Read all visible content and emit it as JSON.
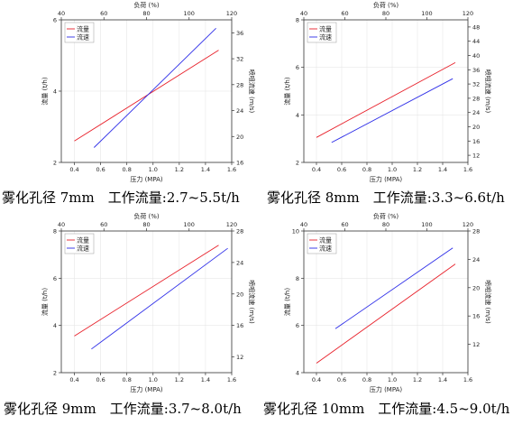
{
  "chart_data": [
    {
      "type": "line",
      "caption": "雾化孔径 7mm　工作流量:2.7~5.5t/h",
      "xlabel": "压力 (MPA)",
      "x2label": "负荷 (%)",
      "ylabel": "流量 (t/h)",
      "y2label": "喷咀流速 (m/s)",
      "xlim": [
        0.3,
        1.6
      ],
      "x2lim": [
        40,
        120
      ],
      "ylim": [
        2,
        6
      ],
      "y2lim": [
        16,
        38
      ],
      "xticks": [
        "0.4",
        "0.6",
        "0.8",
        "1.0",
        "1.2",
        "1.4",
        "1.6"
      ],
      "x2ticks": [
        "40",
        "60",
        "80",
        "100",
        "120"
      ],
      "yticks": [
        "2",
        "4",
        "6"
      ],
      "y2ticks": [
        "16",
        "20",
        "24",
        "28",
        "32",
        "36"
      ],
      "series": [
        {
          "name": "流量",
          "color": "#e8202a",
          "axis": "left",
          "x": [
            0.4,
            1.5
          ],
          "y": [
            2.6,
            5.15
          ]
        },
        {
          "name": "流速",
          "color": "#2d2de8",
          "axis": "right",
          "x": [
            0.55,
            1.48
          ],
          "y": [
            18.3,
            36.7
          ]
        }
      ]
    },
    {
      "type": "line",
      "caption": "雾化孔径 8mm　工作流量:3.3~6.6t/h",
      "xlabel": "压力 (MPA)",
      "x2label": "负荷 (%)",
      "ylabel": "流量 (t/h)",
      "y2label": "喷咀流速 (m/s)",
      "xlim": [
        0.3,
        1.6
      ],
      "x2lim": [
        40,
        120
      ],
      "ylim": [
        2,
        8
      ],
      "y2lim": [
        10,
        50
      ],
      "xticks": [
        "0.4",
        "0.6",
        "0.8",
        "1.0",
        "1.2",
        "1.4",
        "1.6"
      ],
      "x2ticks": [
        "40",
        "60",
        "80",
        "100",
        "120"
      ],
      "yticks": [
        "2",
        "4",
        "6",
        "8"
      ],
      "y2ticks": [
        "12",
        "16",
        "20",
        "24",
        "28",
        "32",
        "36",
        "40",
        "44",
        "48"
      ],
      "series": [
        {
          "name": "流量",
          "color": "#e8202a",
          "axis": "left",
          "x": [
            0.4,
            1.5
          ],
          "y": [
            3.05,
            6.2
          ]
        },
        {
          "name": "流速",
          "color": "#2d2de8",
          "axis": "right",
          "x": [
            0.52,
            1.48
          ],
          "y": [
            15.6,
            33.5
          ]
        }
      ]
    },
    {
      "type": "line",
      "caption": "雾化孔径 9mm　工作流量:3.7~8.0t/h",
      "xlabel": "压力 (MPA)",
      "x2label": "负荷 (%)",
      "ylabel": "流量 (t/h)",
      "y2label": "喷咀流速 (m/s)",
      "xlim": [
        0.3,
        1.6
      ],
      "x2lim": [
        40,
        120
      ],
      "ylim": [
        2,
        8
      ],
      "y2lim": [
        10,
        28
      ],
      "xticks": [
        "0.4",
        "0.6",
        "0.8",
        "1.0",
        "1.2",
        "1.4",
        "1.6"
      ],
      "x2ticks": [
        "40",
        "60",
        "80",
        "100",
        "120"
      ],
      "yticks": [
        "2",
        "4",
        "6",
        "8"
      ],
      "y2ticks": [
        "12",
        "16",
        "20",
        "24",
        "28"
      ],
      "series": [
        {
          "name": "流量",
          "color": "#e8202a",
          "axis": "left",
          "x": [
            0.4,
            1.5
          ],
          "y": [
            3.55,
            7.4
          ]
        },
        {
          "name": "流速",
          "color": "#2d2de8",
          "axis": "right",
          "x": [
            0.53,
            1.57
          ],
          "y": [
            13.0,
            25.8
          ]
        }
      ]
    },
    {
      "type": "line",
      "caption": "雾化孔径 10mm　工作流量:4.5~9.0t/h",
      "xlabel": "压力 (MPA)",
      "x2label": "负荷 (%)",
      "ylabel": "流量 (t/h)",
      "y2label": "喷咀流速 (m/s)",
      "xlim": [
        0.3,
        1.6
      ],
      "x2lim": [
        40,
        120
      ],
      "ylim": [
        4,
        10
      ],
      "y2lim": [
        8,
        28
      ],
      "xticks": [
        "0.4",
        "0.6",
        "0.8",
        "1.0",
        "1.2",
        "1.4",
        "1.6"
      ],
      "x2ticks": [
        "40",
        "60",
        "80",
        "100",
        "120"
      ],
      "yticks": [
        "4",
        "6",
        "8",
        "10"
      ],
      "y2ticks": [
        "12",
        "16",
        "20",
        "24",
        "28"
      ],
      "series": [
        {
          "name": "流量",
          "color": "#e8202a",
          "axis": "left",
          "x": [
            0.4,
            1.5
          ],
          "y": [
            4.4,
            8.6
          ]
        },
        {
          "name": "流速",
          "color": "#2d2de8",
          "axis": "right",
          "x": [
            0.55,
            1.48
          ],
          "y": [
            14.2,
            25.6
          ]
        }
      ]
    }
  ]
}
